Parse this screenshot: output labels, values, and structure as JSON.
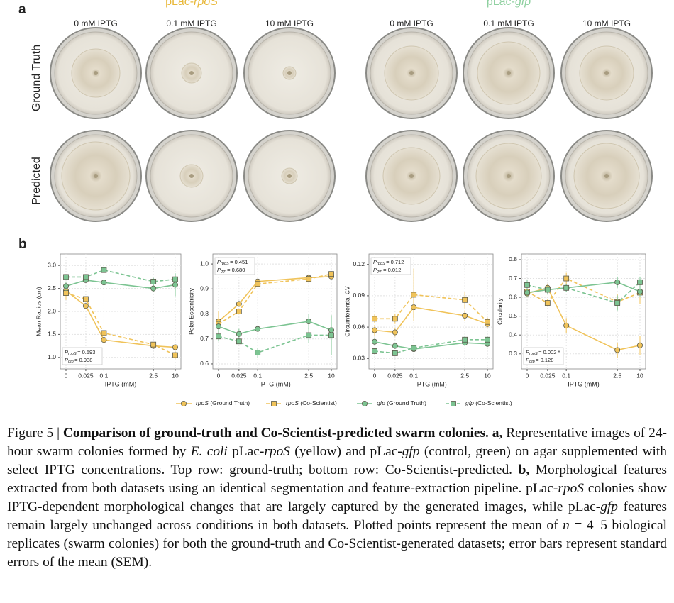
{
  "panel_a": {
    "label": "a",
    "groups": [
      {
        "title": "pLac-rpoS",
        "color": "#e8b83a"
      },
      {
        "title": "pLac-gfp",
        "color": "#8fd0a0"
      }
    ],
    "columns": [
      "0 mM IPTG",
      "0.1 mM IPTG",
      "10 mM IPTG",
      "0 mM IPTG",
      "0.1 mM IPTG",
      "10 mM IPTG"
    ],
    "rows": [
      "Ground Truth",
      "Predicted"
    ]
  },
  "panel_b": {
    "label": "b"
  },
  "chart_data": [
    {
      "type": "line",
      "ylabel": "Mean Radius (cm)",
      "xlabel": "IPTG (mM)",
      "xscale": "symlog",
      "linthresh": 0.01,
      "x": [
        0,
        0.025,
        0.1,
        2.5,
        10
      ],
      "xticks": [
        0,
        0.025,
        0.1,
        2.5,
        10
      ],
      "xlim": [
        0,
        10
      ],
      "ylim": [
        0.75,
        3.25
      ],
      "yticks": [
        {
          "value": 1,
          "label": "1.0"
        },
        1.5,
        {
          "value": 2,
          "label": "2.0"
        },
        2.5,
        {
          "value": 3,
          "label": "3.0"
        }
      ],
      "grid": true,
      "annotation_loc": "lower left",
      "annotations": [
        {
          "symbol": "P",
          "sub": "rpoS",
          "value": "= 0.593"
        },
        {
          "symbol": "P",
          "sub": "gfp",
          "value": "= 0.938"
        }
      ],
      "series": [
        {
          "name": "rpoS (Ground Truth)",
          "color": "#f0c35a",
          "marker": "circle",
          "dashed": false,
          "values": [
            2.45,
            2.12,
            1.38,
            1.25,
            1.22
          ],
          "errors": [
            0.2,
            0.05,
            0.05,
            0.05,
            0.05
          ]
        },
        {
          "name": "rpoS (Co-Scientist)",
          "color": "#f0c35a",
          "marker": "square",
          "dashed": true,
          "values": [
            2.4,
            2.27,
            1.53,
            1.28,
            1.05
          ],
          "errors": [
            0.1,
            0.05,
            0.05,
            0.05,
            0.08
          ]
        },
        {
          "name": "gfp (Ground Truth)",
          "color": "#7cc492",
          "marker": "circle",
          "dashed": false,
          "values": [
            2.55,
            2.68,
            2.63,
            2.5,
            2.58
          ],
          "errors": [
            0.1,
            0.05,
            0.05,
            0.08,
            0.25
          ]
        },
        {
          "name": "gfp (Co-Scientist)",
          "color": "#7cc492",
          "marker": "square",
          "dashed": true,
          "values": [
            2.75,
            2.75,
            2.9,
            2.65,
            2.7
          ],
          "errors": [
            0.05,
            0.05,
            0.05,
            0.08,
            0.1
          ]
        }
      ]
    },
    {
      "type": "line",
      "ylabel": "Polar Eccentricity",
      "xlabel": "IPTG (mM)",
      "xscale": "symlog",
      "linthresh": 0.01,
      "x": [
        0,
        0.025,
        0.1,
        2.5,
        10
      ],
      "xticks": [
        0,
        0.025,
        0.1,
        2.5,
        10
      ],
      "xlim": [
        0,
        10
      ],
      "ylim": [
        0.58,
        1.04
      ],
      "yticks": [
        0.6,
        0.7,
        0.8,
        0.9,
        {
          "value": 1,
          "label": "1.0"
        }
      ],
      "grid": true,
      "annotation_loc": "upper left",
      "annotations": [
        {
          "symbol": "P",
          "sub": "rpoS",
          "value": "= 0.451"
        },
        {
          "symbol": "P",
          "sub": "gfp",
          "value": "= 0.680"
        }
      ],
      "series": [
        {
          "color": "#f0c35a",
          "marker": "circle",
          "dashed": false,
          "values": [
            0.77,
            0.84,
            0.93,
            0.945,
            0.95
          ],
          "errors": [
            0.03,
            0.01,
            0.01,
            0.01,
            0.01
          ]
        },
        {
          "color": "#f0c35a",
          "marker": "square",
          "dashed": true,
          "values": [
            0.76,
            0.81,
            0.92,
            0.94,
            0.96
          ],
          "errors": [
            0.05,
            0.01,
            0.01,
            0.01,
            0.01
          ]
        },
        {
          "color": "#7cc492",
          "marker": "circle",
          "dashed": false,
          "values": [
            0.75,
            0.72,
            0.74,
            0.77,
            0.735
          ],
          "errors": [
            0.02,
            0.02,
            0.01,
            0.03,
            0.03
          ]
        },
        {
          "color": "#7cc492",
          "marker": "square",
          "dashed": true,
          "values": [
            0.71,
            0.69,
            0.645,
            0.715,
            0.715
          ],
          "errors": [
            0.02,
            0.01,
            0.02,
            0.03,
            0.08
          ]
        }
      ]
    },
    {
      "type": "line",
      "ylabel": "Circumferential CV",
      "xlabel": "IPTG (mM)",
      "xscale": "symlog",
      "linthresh": 0.01,
      "x": [
        0,
        0.025,
        0.1,
        2.5,
        10
      ],
      "xticks": [
        0,
        0.025,
        0.1,
        2.5,
        10
      ],
      "xlim": [
        0,
        10
      ],
      "ylim": [
        0.02,
        0.13
      ],
      "yticks": [
        0.03,
        0.06,
        0.09,
        0.12
      ],
      "grid": true,
      "annotation_loc": "upper left",
      "annotations": [
        {
          "symbol": "P",
          "sub": "rpoS",
          "value": "= 0.712"
        },
        {
          "symbol": "P",
          "sub": "gfp",
          "value": "= 0.012"
        }
      ],
      "series": [
        {
          "color": "#f0c35a",
          "marker": "circle",
          "dashed": false,
          "values": [
            0.057,
            0.055,
            0.079,
            0.071,
            0.063
          ],
          "errors": [
            0.005,
            0.004,
            0.01,
            0.005,
            0.004
          ]
        },
        {
          "color": "#f0c35a",
          "marker": "square",
          "dashed": true,
          "values": [
            0.068,
            0.068,
            0.091,
            0.086,
            0.065
          ],
          "errors": [
            0.004,
            0.005,
            0.025,
            0.008,
            0.004
          ]
        },
        {
          "color": "#7cc492",
          "marker": "circle",
          "dashed": false,
          "values": [
            0.046,
            0.042,
            0.039,
            0.045,
            0.044
          ],
          "errors": [
            0.003,
            0.002,
            0.002,
            0.003,
            0.003
          ]
        },
        {
          "color": "#7cc492",
          "marker": "square",
          "dashed": true,
          "values": [
            0.037,
            0.035,
            0.04,
            0.048,
            0.048
          ],
          "errors": [
            0.003,
            0.002,
            0.002,
            0.003,
            0.003
          ]
        }
      ]
    },
    {
      "type": "line",
      "ylabel": "Circularity",
      "xlabel": "IPTG (mM)",
      "xscale": "symlog",
      "linthresh": 0.01,
      "x": [
        0,
        0.025,
        0.1,
        2.5,
        10
      ],
      "xticks": [
        0,
        0.025,
        0.1,
        2.5,
        10
      ],
      "xlim": [
        0,
        10
      ],
      "ylim": [
        0.22,
        0.83
      ],
      "yticks": [
        0.3,
        0.4,
        0.5,
        0.6,
        0.7,
        0.8
      ],
      "grid": true,
      "annotation_loc": "lower left",
      "annotations": [
        {
          "symbol": "P",
          "sub": "rpoS",
          "value": "= 0.002 *"
        },
        {
          "symbol": "P",
          "sub": "gfp",
          "value": "= 0.128"
        }
      ],
      "series": [
        {
          "color": "#f0c35a",
          "marker": "circle",
          "dashed": false,
          "values": [
            0.62,
            0.65,
            0.45,
            0.32,
            0.345
          ],
          "errors": [
            0.02,
            0.02,
            0.04,
            0.04,
            0.05
          ]
        },
        {
          "color": "#f0c35a",
          "marker": "square",
          "dashed": true,
          "values": [
            0.63,
            0.57,
            0.7,
            0.575,
            0.625
          ],
          "errors": [
            0.03,
            0.02,
            0.03,
            0.04,
            0.06
          ]
        },
        {
          "color": "#7cc492",
          "marker": "circle",
          "dashed": false,
          "values": [
            0.625,
            0.64,
            0.65,
            0.68,
            0.63
          ],
          "errors": [
            0.02,
            0.02,
            0.02,
            0.03,
            0.03
          ]
        },
        {
          "color": "#7cc492",
          "marker": "square",
          "dashed": true,
          "values": [
            0.665,
            0.64,
            0.65,
            0.57,
            0.68
          ],
          "errors": [
            0.03,
            0.02,
            0.02,
            0.04,
            0.03
          ]
        }
      ]
    }
  ],
  "caption": {
    "runs": [
      {
        "text": "Figure 5 | "
      },
      {
        "text": "Comparison of ground-truth and Co-Scientist-predicted swarm colonies. a,",
        "style": "bold"
      },
      {
        "text": " Representative images of 24-hour swarm colonies formed by "
      },
      {
        "text": "E. coli",
        "style": "italic"
      },
      {
        "text": " pLac-"
      },
      {
        "text": "rpoS",
        "style": "italic"
      },
      {
        "text": " (yellow) and pLac-"
      },
      {
        "text": "gfp",
        "style": "italic"
      },
      {
        "text": " (control, green) on agar supplemented with select IPTG concentrations. Top row: ground-truth; bottom row: Co-Scientist-predicted. "
      },
      {
        "text": "b,",
        "style": "bold"
      },
      {
        "text": " Morphological features extracted from both datasets using an identical segmentation and feature-extraction pipeline. pLac-"
      },
      {
        "text": "rpoS",
        "style": "italic"
      },
      {
        "text": " colonies show IPTG-dependent morphological changes that are largely captured by the generated images, while pLac-"
      },
      {
        "text": "gfp",
        "style": "italic"
      },
      {
        "text": " features remain largely unchanged across conditions in both datasets. Plotted points represent the mean of "
      },
      {
        "text": "n",
        "style": "italic"
      },
      {
        "text": " = 4–5 biological replicates (swarm colonies) for both the ground-truth and Co-Scientist-generated datasets; error bars represent standard errors of the mean (SEM)."
      }
    ]
  }
}
